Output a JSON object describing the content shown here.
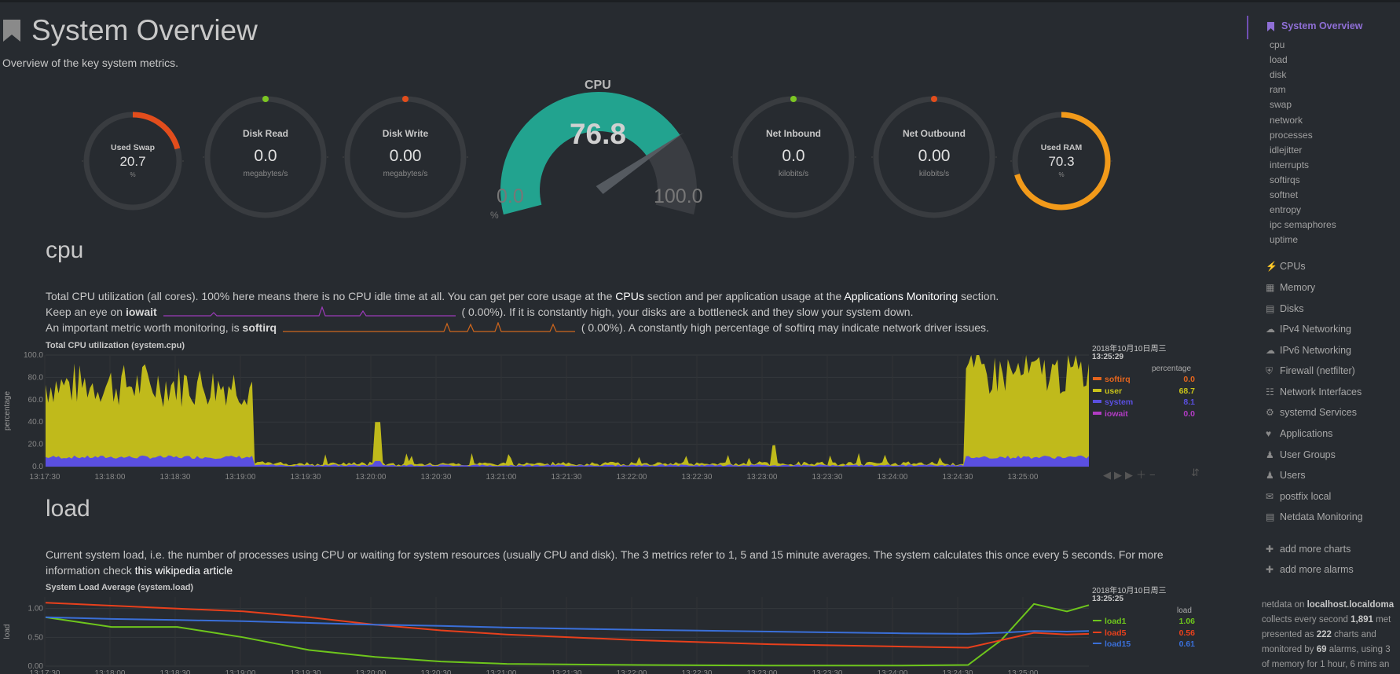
{
  "header": {
    "title": "System Overview",
    "subtitle": "Overview of the key system metrics."
  },
  "gauges": [
    {
      "name": "Used Swap",
      "value": "20.7",
      "unit": "%",
      "fraction": 0.207,
      "color": "#e24d1c",
      "type": "ring"
    },
    {
      "name": "Disk Read",
      "value": "0.0",
      "unit": "megabytes/s",
      "fraction": 0,
      "color": "#7cc623",
      "type": "ring"
    },
    {
      "name": "Disk Write",
      "value": "0.00",
      "unit": "megabytes/s",
      "fraction": 0,
      "color": "#e24d1c",
      "type": "ring"
    },
    {
      "name": "Net Inbound",
      "value": "0.0",
      "unit": "kilobits/s",
      "fraction": 0,
      "color": "#7cc623",
      "type": "ring"
    },
    {
      "name": "Net Outbound",
      "value": "0.00",
      "unit": "kilobits/s",
      "fraction": 0,
      "color": "#e24d1c",
      "type": "ring"
    },
    {
      "name": "Used RAM",
      "value": "70.3",
      "unit": "%",
      "fraction": 0.703,
      "color": "#f29a1a",
      "type": "ring"
    }
  ],
  "cpu_gauge": {
    "name": "CPU",
    "value": "76.8",
    "min": "0.0",
    "max": "100.0",
    "unit": "%",
    "fraction": 0.768,
    "color": "#22a38f"
  },
  "cpu_section": {
    "heading": "cpu",
    "para1_a": "Total CPU utilization (all cores). 100% here means there is no CPU idle time at all. You can get per core usage at the",
    "para1_link1": "CPUs",
    "para1_b": "section and per application usage at the",
    "para1_link2": "Applications Monitoring",
    "para1_c": "section.",
    "para2_a": "Keep an eye on",
    "para2_bold": "iowait",
    "para2_val": "(      0.00%). If it is constantly high, your disks are a bottleneck and they slow your system down.",
    "para3_a": "An important metric worth monitoring, is",
    "para3_bold": "softirq",
    "para3_val": "(      0.00%). A constantly high percentage of softirq may indicate network driver issues.",
    "chart_title": "Total CPU utilization (system.cpu)",
    "ylabel": "percentage",
    "y_ticks": [
      "100.0",
      "80.0",
      "60.0",
      "40.0",
      "20.0",
      "0.0"
    ],
    "x_ticks": [
      "13:17:30",
      "13:18:00",
      "13:18:30",
      "13:19:00",
      "13:19:30",
      "13:20:00",
      "13:20:30",
      "13:21:00",
      "13:21:30",
      "13:22:00",
      "13:22:30",
      "13:23:00",
      "13:23:30",
      "13:24:00",
      "13:24:30",
      "13:25:00"
    ],
    "legend_date": "2018年10月10日周三",
    "legend_time": "13:25:29",
    "legend_units": "percentage",
    "legend": [
      {
        "name": "softirq",
        "value": "0.0",
        "color": "#e5651d"
      },
      {
        "name": "user",
        "value": "68.7",
        "color": "#c8c21a"
      },
      {
        "name": "system",
        "value": "8.1",
        "color": "#5a4fe0"
      },
      {
        "name": "iowait",
        "value": "0.0",
        "color": "#b23cc4"
      }
    ]
  },
  "load_section": {
    "heading": "load",
    "para1": "Current system load, i.e. the number of processes using CPU or waiting for system resources (usually CPU and disk). The 3 metrics refer to 1, 5 and 15 minute averages. The system calculates this once every 5 seconds. For more",
    "para2_a": "information check",
    "para2_link": "this wikipedia article",
    "chart_title": "System Load Average (system.load)",
    "ylabel": "load",
    "y_ticks": [
      "1.00",
      "0.50",
      "0.00"
    ],
    "x_ticks": [
      "13:17:30",
      "13:18:00",
      "13:18:30",
      "13:19:00",
      "13:19:30",
      "13:20:00",
      "13:20:30",
      "13:21:00",
      "13:21:30",
      "13:22:00",
      "13:22:30",
      "13:23:00",
      "13:23:30",
      "13:24:00",
      "13:24:30",
      "13:25:00"
    ],
    "legend_date": "2018年10月10日周三",
    "legend_time": "13:25:25",
    "legend_units": "load",
    "legend": [
      {
        "name": "load1",
        "value": "1.06",
        "color": "#6ec61c"
      },
      {
        "name": "load5",
        "value": "0.56",
        "color": "#e8401c"
      },
      {
        "name": "load15",
        "value": "0.61",
        "color": "#3a6fd8"
      }
    ]
  },
  "chart_data": [
    {
      "type": "area",
      "title": "Total CPU utilization (system.cpu)",
      "ylabel": "percentage",
      "ylim": [
        0,
        100
      ],
      "x": [
        "13:17:30",
        "13:18:00",
        "13:18:30",
        "13:19:00",
        "13:19:10",
        "13:19:30",
        "13:20:00",
        "13:20:30",
        "13:21:00",
        "13:22:00",
        "13:23:00",
        "13:24:00",
        "13:24:30",
        "13:24:35",
        "13:25:00",
        "13:25:29"
      ],
      "series": [
        {
          "name": "system",
          "values": [
            8,
            8,
            8,
            8,
            3,
            1,
            1,
            1,
            1,
            1,
            1,
            1,
            1,
            8,
            8,
            8.1
          ]
        },
        {
          "name": "user",
          "values": [
            55,
            60,
            58,
            62,
            3,
            2,
            3,
            2,
            2,
            2,
            2,
            2,
            2,
            75,
            70,
            68.7
          ]
        },
        {
          "name": "softirq",
          "values": [
            0,
            0,
            0,
            0,
            0,
            0,
            0,
            0,
            0,
            0,
            0,
            0,
            0,
            0,
            0,
            0
          ]
        },
        {
          "name": "iowait",
          "values": [
            0,
            0,
            0,
            0,
            0,
            0,
            0,
            0,
            0,
            0,
            0,
            0,
            0,
            0,
            0,
            0
          ]
        }
      ],
      "grid": true
    },
    {
      "type": "line",
      "title": "System Load Average (system.load)",
      "ylabel": "load",
      "ylim": [
        0,
        1.2
      ],
      "x": [
        "13:17:30",
        "13:18:00",
        "13:18:30",
        "13:19:00",
        "13:19:30",
        "13:20:00",
        "13:20:30",
        "13:21:00",
        "13:22:00",
        "13:23:00",
        "13:24:00",
        "13:24:30",
        "13:24:45",
        "13:25:00",
        "13:25:15",
        "13:25:25"
      ],
      "series": [
        {
          "name": "load1",
          "values": [
            0.85,
            0.68,
            0.68,
            0.5,
            0.28,
            0.16,
            0.08,
            0.04,
            0.02,
            0.01,
            0.01,
            0.02,
            0.45,
            1.08,
            0.95,
            1.06
          ]
        },
        {
          "name": "load5",
          "values": [
            1.1,
            1.05,
            1.0,
            0.95,
            0.85,
            0.72,
            0.62,
            0.55,
            0.45,
            0.38,
            0.34,
            0.32,
            0.45,
            0.58,
            0.55,
            0.56
          ]
        },
        {
          "name": "load15",
          "values": [
            0.85,
            0.82,
            0.8,
            0.78,
            0.75,
            0.72,
            0.7,
            0.67,
            0.63,
            0.6,
            0.57,
            0.56,
            0.58,
            0.61,
            0.6,
            0.61
          ]
        }
      ],
      "grid": true
    }
  ],
  "sidebar": {
    "active": "System Overview",
    "subitems": [
      "cpu",
      "load",
      "disk",
      "ram",
      "swap",
      "network",
      "processes",
      "idlejitter",
      "interrupts",
      "softirqs",
      "softnet",
      "entropy",
      "ipc semaphores",
      "uptime"
    ],
    "items": [
      {
        "label": "CPUs",
        "icon": "bolt-icon"
      },
      {
        "label": "Memory",
        "icon": "memory-icon"
      },
      {
        "label": "Disks",
        "icon": "hdd-icon"
      },
      {
        "label": "IPv4 Networking",
        "icon": "cloud-icon"
      },
      {
        "label": "IPv6 Networking",
        "icon": "cloud-icon"
      },
      {
        "label": "Firewall (netfilter)",
        "icon": "shield-icon"
      },
      {
        "label": "Network Interfaces",
        "icon": "sitemap-icon"
      },
      {
        "label": "systemd Services",
        "icon": "cogs-icon"
      },
      {
        "label": "Applications",
        "icon": "heartbeat-icon"
      },
      {
        "label": "User Groups",
        "icon": "users-icon"
      },
      {
        "label": "Users",
        "icon": "user-icon"
      },
      {
        "label": "postfix local",
        "icon": "envelope-icon"
      },
      {
        "label": "Netdata Monitoring",
        "icon": "chart-icon"
      }
    ],
    "add_charts": "add more charts",
    "add_alarms": "add more alarms",
    "foot1_a": "netdata on",
    "foot1_b": "localhost.localdoma",
    "foot2_a": "collects every second",
    "foot2_b": "1,891",
    "foot2_c": "met",
    "foot3_a": "presented as",
    "foot3_b": "222",
    "foot3_c": "charts and",
    "foot4_a": "monitored by",
    "foot4_b": "69",
    "foot4_c": "alarms, using 3",
    "foot5": "of memory for 1 hour, 6 mins an"
  }
}
